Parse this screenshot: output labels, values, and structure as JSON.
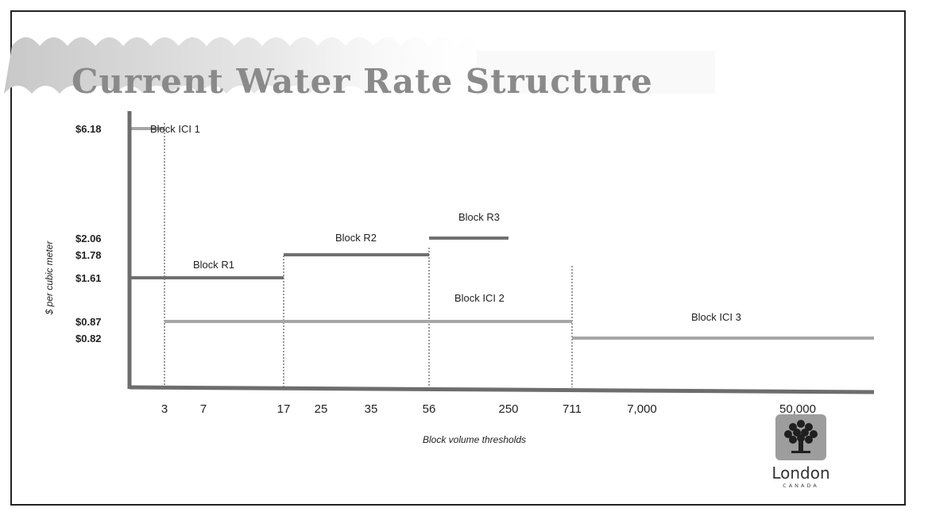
{
  "title": "Current Water Rate Structure",
  "chart_data": {
    "type": "line",
    "ylabel": "$ per cubic meter",
    "xlabel": "Block volume thresholds",
    "y_ticks": [
      "$6.18",
      "$2.06",
      "$1.78",
      "$1.61",
      "$0.87",
      "$0.82"
    ],
    "x_ticks": [
      "3",
      "7",
      "17",
      "25",
      "35",
      "56",
      "250",
      "711",
      "7,000",
      "50,000"
    ],
    "thresholds": [
      "3",
      "17",
      "56",
      "711"
    ],
    "series": [
      {
        "name": "Block ICI 1",
        "x_start": "0",
        "x_end": "3",
        "rate": 6.18,
        "color": "#a6a6a6"
      },
      {
        "name": "Block R1",
        "x_start": "0",
        "x_end": "17",
        "rate": 1.61,
        "color": "#707070"
      },
      {
        "name": "Block R2",
        "x_start": "17",
        "x_end": "56",
        "rate": 1.78,
        "color": "#707070"
      },
      {
        "name": "Block R3",
        "x_start": "56",
        "x_end": "250",
        "rate": 2.06,
        "color": "#707070"
      },
      {
        "name": "Block ICI 2",
        "x_start": "3",
        "x_end": "711",
        "rate": 0.87,
        "color": "#a6a6a6"
      },
      {
        "name": "Block ICI 3",
        "x_start": "711",
        "x_end": "50,000+",
        "rate": 0.82,
        "color": "#a6a6a6"
      }
    ]
  },
  "logo": {
    "word": "London",
    "sub": "CANADA",
    "icon": "tree-icon"
  }
}
